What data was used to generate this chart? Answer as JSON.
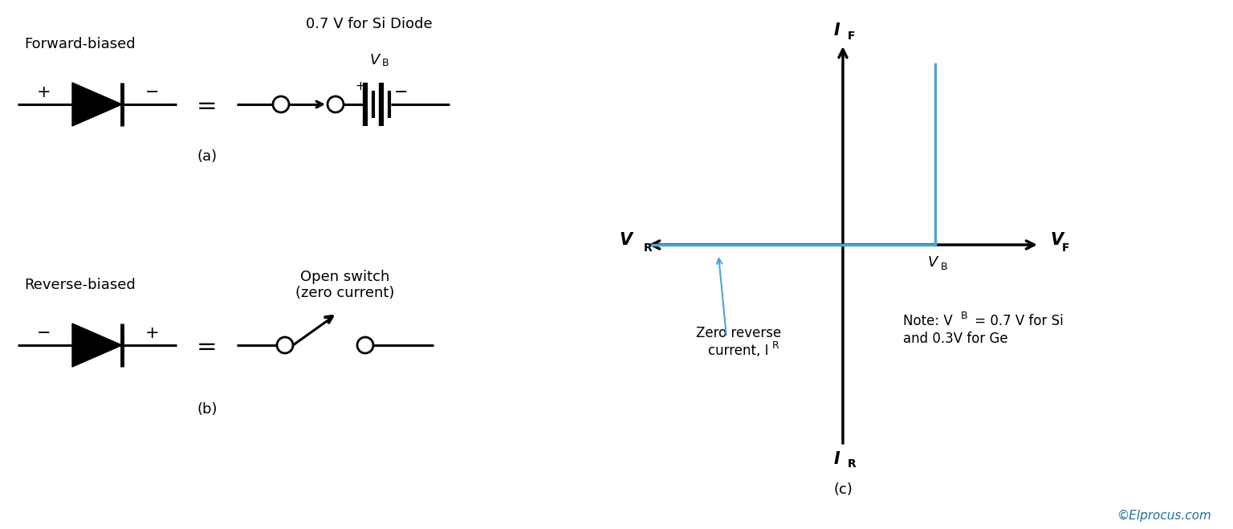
{
  "bg_color": "#ffffff",
  "text_color": "#000000",
  "blue_color": "#4da6d4",
  "copyright_color": "#1a6fa8",
  "fig_width": 15.36,
  "fig_height": 6.59,
  "forward_biased_label": "Forward-biased",
  "reverse_biased_label": "Reverse-biased",
  "title_a": "0.7 V for Si Diode",
  "open_switch_label": "Open switch\n(zero current)",
  "label_a": "(a)",
  "label_b": "(b)",
  "label_c": "(c)",
  "copyright": "©Elprocus.com",
  "zero_rev_line1": "Zero reverse",
  "zero_rev_line2": "current, I",
  "note_line1": "Note: V",
  "note_line2": " = 0.7 V for Si",
  "note_line3": "and 0.3V for Ge"
}
